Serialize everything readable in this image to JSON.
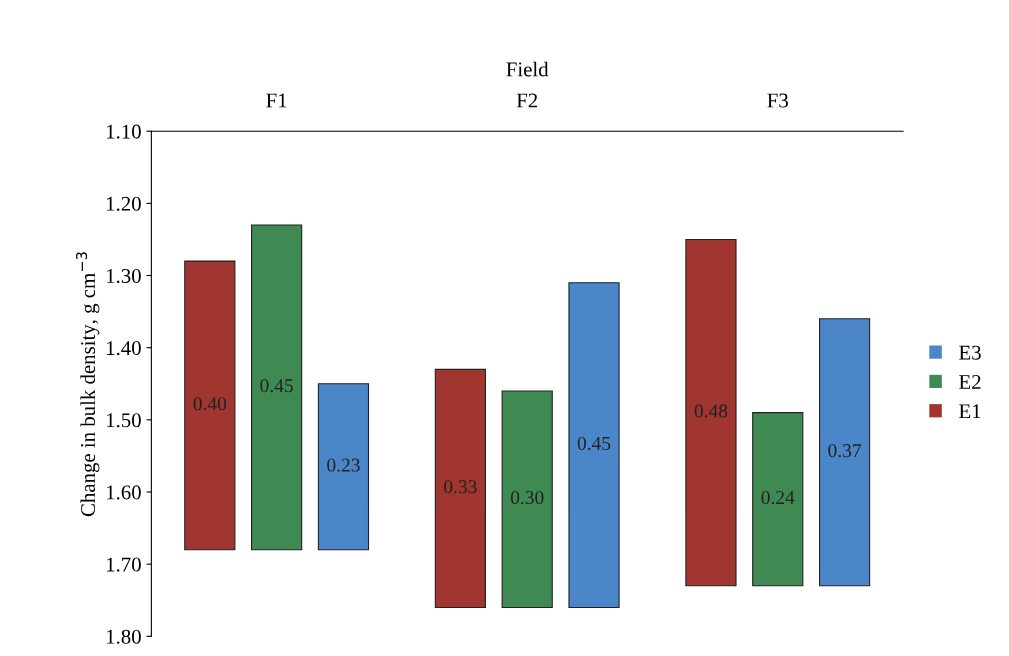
{
  "chart_data": {
    "type": "bar",
    "xlabel": "Field",
    "ylabel": "Change in bulk density, g cm$^{−3}$",
    "categories": [
      "F1",
      "F2",
      "F3"
    ],
    "series": [
      {
        "name": "E1",
        "color": "#a0362f",
        "base": [
          1.28,
          1.43,
          1.25
        ],
        "values": [
          0.4,
          0.33,
          0.48
        ],
        "value_labels": [
          "0.40",
          "0.33",
          "0.48"
        ]
      },
      {
        "name": "E2",
        "color": "#3f8a52",
        "base": [
          1.23,
          1.46,
          1.49
        ],
        "values": [
          0.45,
          0.3,
          0.24
        ],
        "value_labels": [
          "0.45",
          "0.30",
          "0.24"
        ]
      },
      {
        "name": "E3",
        "color": "#4a86c8",
        "base": [
          1.45,
          1.31,
          1.36
        ],
        "values": [
          0.23,
          0.45,
          0.37
        ],
        "value_labels": [
          "0.23",
          "0.45",
          "0.37"
        ]
      }
    ],
    "ylim": [
      1.8,
      1.1
    ],
    "yticks": [
      {
        "value": 1.1,
        "label": "1.10"
      },
      {
        "value": 1.2,
        "label": "1.20"
      },
      {
        "value": 1.3,
        "label": "1.30"
      },
      {
        "value": 1.4,
        "label": "1.40"
      },
      {
        "value": 1.5,
        "label": "1.50"
      },
      {
        "value": 1.6,
        "label": "1.60"
      },
      {
        "value": 1.7,
        "label": "1.70"
      },
      {
        "value": 1.8,
        "label": "1.80"
      }
    ],
    "grid": false,
    "legend": "right"
  }
}
